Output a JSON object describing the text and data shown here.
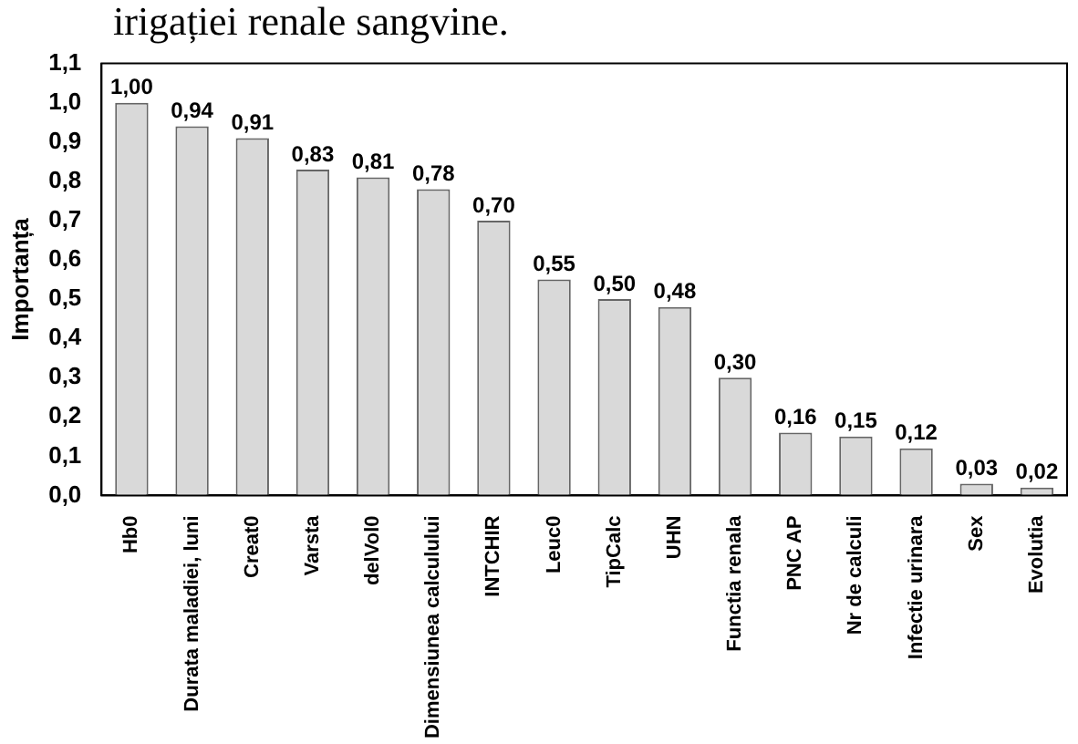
{
  "chart_data": {
    "type": "bar",
    "title": "irigației renale sangvine.",
    "ylabel": "Importanța",
    "categories": [
      "Hb0",
      "Durata maladiei, luni",
      "Creat0",
      "Varsta",
      "delVol0",
      "Dimensiunea calculului",
      "INTCHIR",
      "Leuc0",
      "TipCalc",
      "UHN",
      "Functia renala",
      "PNC AP",
      "Nr de calculi",
      "Infectie urinara",
      "Sex",
      "Evolutia"
    ],
    "values": [
      1.0,
      0.94,
      0.91,
      0.83,
      0.81,
      0.78,
      0.7,
      0.55,
      0.5,
      0.48,
      0.3,
      0.16,
      0.15,
      0.12,
      0.03,
      0.02
    ],
    "value_labels": [
      "1,00",
      "0,94",
      "0,91",
      "0,83",
      "0,81",
      "0,78",
      "0,70",
      "0,55",
      "0,50",
      "0,48",
      "0,30",
      "0,16",
      "0,15",
      "0,12",
      "0,03",
      "0,02"
    ],
    "color": "#d9d9d9",
    "ylim": [
      0,
      1.1
    ],
    "yticks": [
      {
        "value": 0,
        "label": "0,0"
      },
      {
        "value": 0.1,
        "label": "0,1"
      },
      {
        "value": 0.2,
        "label": "0,2"
      },
      {
        "value": 0.3,
        "label": "0,3"
      },
      {
        "value": 0.4,
        "label": "0,4"
      },
      {
        "value": 0.5,
        "label": "0,5"
      },
      {
        "value": 0.6,
        "label": "0,6"
      },
      {
        "value": 0.7,
        "label": "0,7"
      },
      {
        "value": 0.8,
        "label": "0,8"
      },
      {
        "value": 0.9,
        "label": "0,9"
      },
      {
        "value": 1.0,
        "label": "1,0"
      },
      {
        "value": 1.1,
        "label": "1,1"
      }
    ],
    "grid": false,
    "legend": false
  }
}
